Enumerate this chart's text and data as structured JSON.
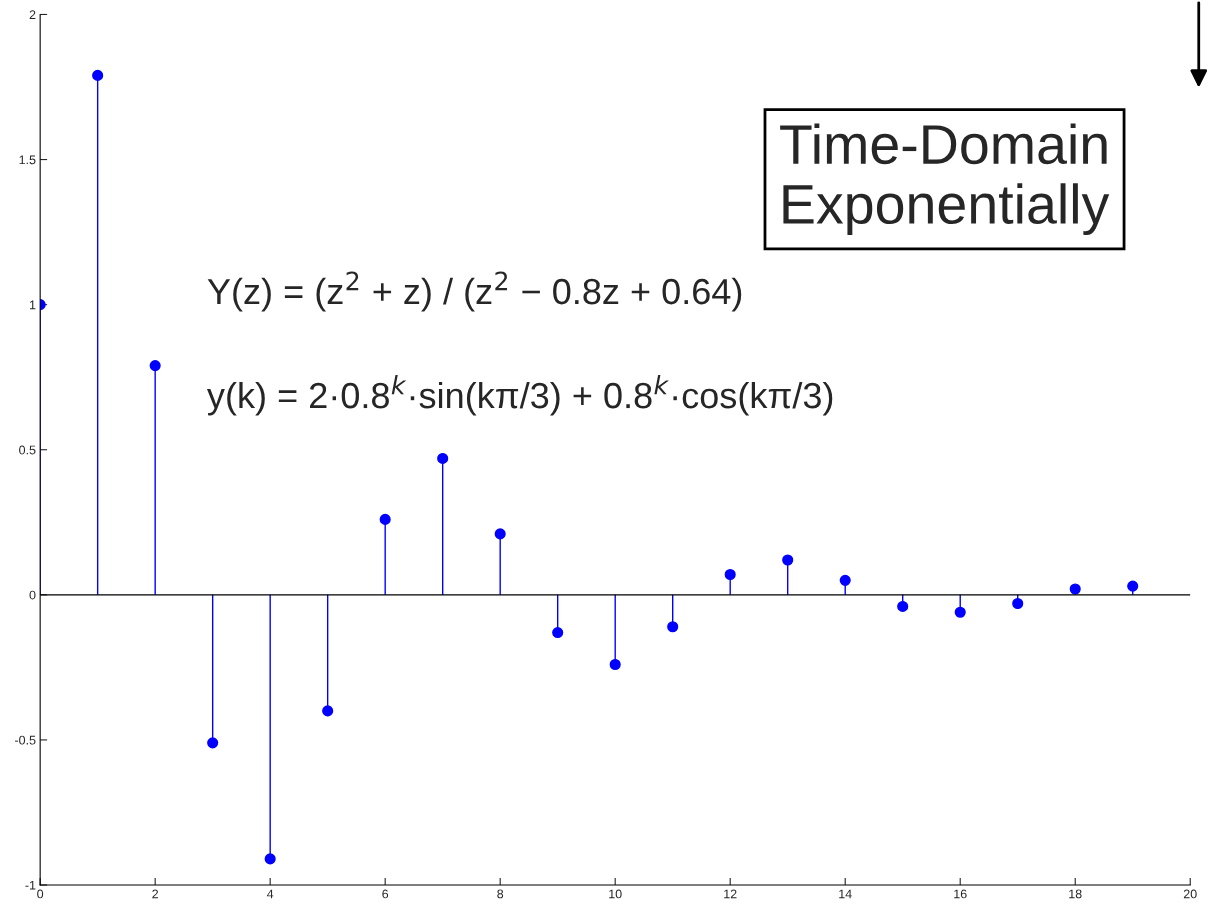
{
  "chart_data": {
    "type": "lollipop",
    "x": [
      0,
      1,
      2,
      3,
      4,
      5,
      6,
      7,
      8,
      9,
      10,
      11,
      12,
      13,
      14,
      15,
      16,
      17,
      18,
      19
    ],
    "values": [
      1,
      1.79,
      0.79,
      -0.51,
      -0.91,
      -0.4,
      0.26,
      0.47,
      0.21,
      -0.13,
      -0.24,
      -0.11,
      0.07,
      0.12,
      0.05,
      -0.04,
      -0.06,
      -0.03,
      0.02,
      0.03
    ],
    "color": "#0000ff",
    "marker": "circle",
    "xlim": [
      0,
      20
    ],
    "xticks": [
      0,
      2,
      4,
      6,
      8,
      10,
      12,
      14,
      16,
      18,
      20
    ],
    "ylim": [
      -1,
      2
    ],
    "yticks": [
      -1,
      -0.5,
      0,
      0.5,
      1,
      1.5,
      2
    ],
    "grid": false,
    "ref_lines": [
      {
        "axis": "y",
        "value": 0,
        "color": "#000000"
      }
    ],
    "annotations": [
      "Y(z) = (z$^{2}$ + z) / (z$^{2}$ − 0.8z + 0.64)",
      "y(k) = 2·0.8$^{k}$·sin(kπ/3) + 0.8$^{k}$·cos(kπ/3)",
      "Time-Domain\nExponentially"
    ]
  }
}
